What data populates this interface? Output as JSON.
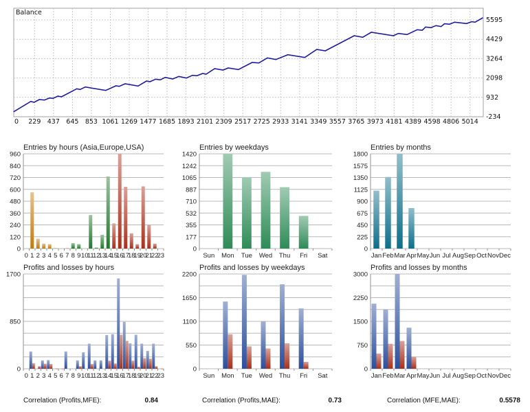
{
  "chart_data": [
    {
      "type": "line",
      "title": "Balance",
      "color": "#1c1c9c",
      "grid": true,
      "xlim": [
        0,
        5160
      ],
      "ylim": [
        -234,
        6297
      ],
      "xticks": [
        0,
        229,
        437,
        645,
        853,
        1061,
        1269,
        1477,
        1685,
        1893,
        2101,
        2309,
        2517,
        2725,
        2933,
        3141,
        3349,
        3557,
        3765,
        3973,
        4181,
        4389,
        4598,
        4806,
        5014
      ],
      "yticks": [
        5595,
        4429,
        3264,
        2098,
        932,
        -234
      ],
      "x": [
        0,
        187,
        224,
        281,
        337,
        393,
        430,
        486,
        524,
        692,
        730,
        786,
        1010,
        1123,
        1160,
        1224,
        1366,
        1459,
        1497,
        1560,
        1609,
        1665,
        1747,
        1815,
        1897,
        1964,
        2013,
        2077,
        2114,
        2208,
        2301,
        2357,
        2469,
        2619,
        2694,
        2788,
        2881,
        3012,
        3199,
        3330,
        3424,
        3742,
        3835,
        3929,
        4172,
        4228,
        4322,
        4434,
        4490,
        4527,
        4584,
        4640,
        4696,
        4734,
        4790,
        4846,
        4977,
        5033,
        5070,
        5153
      ],
      "y": [
        69,
        689,
        634,
        800,
        772,
        896,
        868,
        1006,
        965,
        1447,
        1406,
        1557,
        1351,
        1626,
        1599,
        1750,
        1612,
        1916,
        1874,
        2026,
        1985,
        2136,
        2040,
        2191,
        2095,
        2260,
        2233,
        2370,
        2329,
        2660,
        2577,
        2701,
        2605,
        3032,
        3004,
        3307,
        3211,
        3500,
        3335,
        3817,
        3735,
        4644,
        4548,
        4851,
        4644,
        4782,
        4713,
        5002,
        4975,
        5168,
        5127,
        5250,
        5195,
        5361,
        5333,
        5457,
        5375,
        5485,
        5457,
        5719
      ]
    },
    {
      "type": "bar",
      "title": "Entries by hours (Asia,Europe,USA)",
      "categories": [
        "0",
        "1",
        "2",
        "3",
        "4",
        "5",
        "6",
        "7",
        "8",
        "9",
        "10",
        "11",
        "12",
        "13",
        "14",
        "15",
        "16",
        "17",
        "18",
        "19",
        "20",
        "21",
        "22",
        "23"
      ],
      "values": [
        0,
        570,
        100,
        50,
        45,
        5,
        0,
        5,
        55,
        45,
        0,
        340,
        10,
        140,
        730,
        255,
        960,
        625,
        155,
        45,
        630,
        240,
        50,
        0
      ],
      "bar_colors": [
        "#c07a10",
        "#c07a10",
        "#c07a10",
        "#c07a10",
        "#c07a10",
        "#c07a10",
        "#c07a10",
        "#c07a10",
        "#1f7a2a",
        "#1f7a2a",
        "#1f7a2a",
        "#1f7a2a",
        "#1f7a2a",
        "#1f7a2a",
        "#1f7a2a",
        "#a8301c",
        "#a8301c",
        "#a8301c",
        "#a8301c",
        "#a8301c",
        "#a8301c",
        "#a8301c",
        "#a8301c",
        "#a8301c"
      ],
      "ylim": [
        0,
        960
      ],
      "yticks": [
        0,
        120,
        240,
        360,
        480,
        600,
        720,
        840,
        960
      ],
      "gridlines": [
        0,
        120,
        240,
        360,
        480,
        600,
        720,
        840,
        960
      ]
    },
    {
      "type": "bar",
      "title": "Entries by weekdays",
      "categories": [
        "Sun",
        "Mon",
        "Tue",
        "Wed",
        "Thu",
        "Fri",
        "Sat"
      ],
      "values": [
        0,
        1420,
        1070,
        1150,
        920,
        490,
        0
      ],
      "color": "#2e8b57",
      "ylim": [
        0,
        1420
      ],
      "yticks": [
        0,
        177,
        355,
        532,
        710,
        887,
        1065,
        1242,
        1420
      ],
      "gridlines": [
        0,
        177.5,
        355,
        532.5,
        710,
        887.5,
        1065,
        1242.5,
        1420
      ]
    },
    {
      "type": "bar",
      "title": "Entries by months",
      "categories": [
        "Jan",
        "Feb",
        "Mar",
        "Apr",
        "May",
        "Jun",
        "Jul",
        "Aug",
        "Sep",
        "Oct",
        "Nov",
        "Dec"
      ],
      "values": [
        1100,
        1360,
        1800,
        770,
        0,
        0,
        0,
        0,
        0,
        0,
        0,
        0
      ],
      "color": "#0e6e8a",
      "ylim": [
        0,
        1800
      ],
      "yticks": [
        0,
        225,
        450,
        675,
        900,
        1125,
        1350,
        1575,
        1800
      ],
      "gridlines": [
        0,
        225,
        450,
        675,
        900,
        1125,
        1350,
        1575,
        1800
      ]
    },
    {
      "type": "bar",
      "title": "Profits and losses by hours",
      "categories": [
        "0",
        "1",
        "2",
        "3",
        "4",
        "5",
        "6",
        "7",
        "8",
        "9",
        "10",
        "11",
        "12",
        "13",
        "14",
        "15",
        "16",
        "17",
        "18",
        "19",
        "20",
        "21",
        "22",
        "23"
      ],
      "series": [
        {
          "color": "#2c4f9c",
          "values": [
            0,
            310,
            0,
            150,
            155,
            0,
            0,
            310,
            0,
            150,
            295,
            450,
            150,
            150,
            605,
            620,
            1620,
            840,
            455,
            610,
            450,
            320,
            450,
            0
          ]
        },
        {
          "color": "#a8301c",
          "values": [
            0,
            100,
            45,
            90,
            85,
            5,
            5,
            0,
            0,
            45,
            0,
            85,
            0,
            0,
            145,
            95,
            610,
            500,
            145,
            35,
            190,
            180,
            45,
            5
          ]
        }
      ],
      "ylim": [
        0,
        1700
      ],
      "yticks": [
        0,
        850,
        1700
      ],
      "gridlines": [
        0,
        212.5,
        425,
        637.5,
        850,
        1062.5,
        1275,
        1487.5,
        1700
      ]
    },
    {
      "type": "bar",
      "title": "Profits and losses by weekdays",
      "categories": [
        "Sun",
        "Mon",
        "Tue",
        "Wed",
        "Thu",
        "Fri",
        "Sat"
      ],
      "series": [
        {
          "color": "#2c4f9c",
          "values": [
            0,
            1560,
            2180,
            1100,
            1960,
            1400,
            0
          ]
        },
        {
          "color": "#a8301c",
          "values": [
            0,
            800,
            520,
            470,
            590,
            160,
            0
          ]
        }
      ],
      "ylim": [
        0,
        2200
      ],
      "yticks": [
        0,
        550,
        1100,
        1650,
        2200
      ],
      "gridlines": [
        0,
        275,
        550,
        825,
        1100,
        1375,
        1650,
        1925,
        2200
      ]
    },
    {
      "type": "bar",
      "title": "Profits and losses by months",
      "categories": [
        "Jan",
        "Feb",
        "Mar",
        "Apr",
        "May",
        "Jun",
        "Jul",
        "Aug",
        "Sep",
        "Oct",
        "Nov",
        "Dec"
      ],
      "series": [
        {
          "color": "#2c4f9c",
          "values": [
            2060,
            1880,
            3000,
            1300,
            0,
            0,
            0,
            0,
            0,
            0,
            0,
            0
          ]
        },
        {
          "color": "#a8301c",
          "values": [
            480,
            790,
            880,
            380,
            0,
            0,
            0,
            0,
            0,
            0,
            0,
            0
          ]
        }
      ],
      "ylim": [
        0,
        3000
      ],
      "yticks": [
        0,
        750,
        1500,
        2250,
        3000
      ],
      "gridlines": [
        0,
        375,
        750,
        1125,
        1500,
        1875,
        2250,
        2625,
        3000
      ]
    }
  ],
  "correlations": [
    {
      "label": "Correlation (Profits,MFE):",
      "value": "0.84"
    },
    {
      "label": "Correlation (Profits,MAE):",
      "value": "0.73"
    },
    {
      "label": "Correlation (MFE,MAE):",
      "value": "0.5578"
    }
  ]
}
